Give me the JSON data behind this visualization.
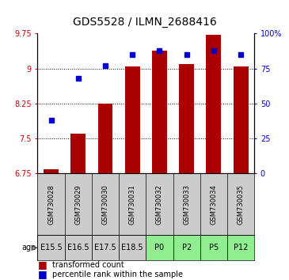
{
  "title": "GDS5528 / ILMN_2688416",
  "samples": [
    "GSM730028",
    "GSM730029",
    "GSM730030",
    "GSM730031",
    "GSM730032",
    "GSM730033",
    "GSM730034",
    "GSM730035"
  ],
  "ages": [
    "E15.5",
    "E16.5",
    "E17.5",
    "E18.5",
    "P0",
    "P2",
    "P5",
    "P12"
  ],
  "age_colors": [
    "#cccccc",
    "#cccccc",
    "#cccccc",
    "#cccccc",
    "#90ee90",
    "#90ee90",
    "#90ee90",
    "#90ee90"
  ],
  "gsm_bg_color": "#cccccc",
  "transformed_counts": [
    6.85,
    7.6,
    8.25,
    9.05,
    9.38,
    9.1,
    9.73,
    9.05
  ],
  "percentile_ranks": [
    38,
    68,
    77,
    85,
    88,
    85,
    88,
    85
  ],
  "bar_color": "#aa0000",
  "dot_color": "#0000cc",
  "ylim_left": [
    6.75,
    9.75
  ],
  "yticks_left": [
    6.75,
    7.5,
    8.25,
    9.0,
    9.75
  ],
  "ylim_right": [
    0,
    100
  ],
  "yticks_right": [
    0,
    25,
    50,
    75,
    100
  ],
  "ytick_labels_right": [
    "0",
    "25",
    "50",
    "75",
    "100%"
  ],
  "ylabel_left_color": "#cc0000",
  "ylabel_right_color": "#0000cc",
  "bar_bottom": 6.75,
  "title_fontsize": 10,
  "tick_fontsize": 7,
  "sample_fontsize": 6,
  "age_fontsize": 7,
  "legend_fontsize": 7
}
